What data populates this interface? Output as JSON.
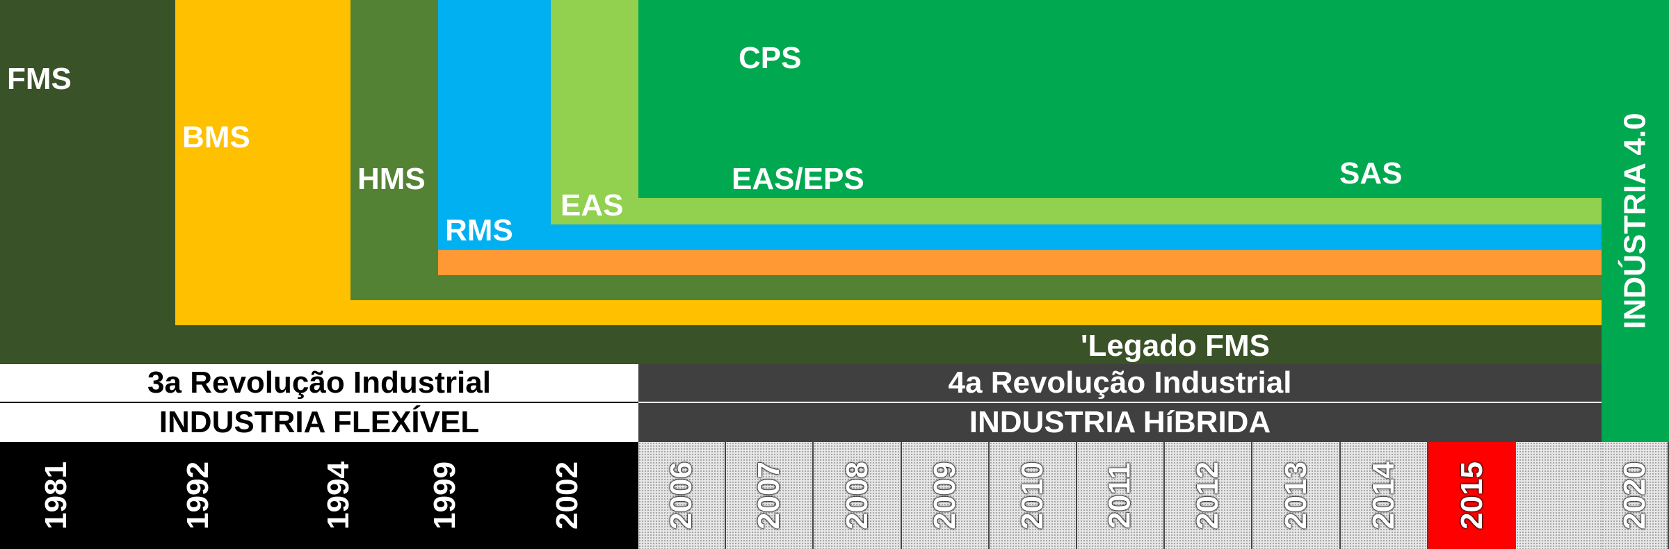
{
  "colors": {
    "fms": "#3a5228",
    "bms": "#ffc000",
    "hms": "#548235",
    "orange_band": "#ff9933",
    "rms": "#00b0f0",
    "eas": "#92d050",
    "cps": "#00a850",
    "industria40": "#00a850",
    "dark_band": "#404040",
    "black": "#000000",
    "highlight_2015": "#ff0000"
  },
  "systems": {
    "fms": "FMS",
    "bms": "BMS",
    "hms": "HMS",
    "rms": "RMS",
    "eas": "EAS",
    "eas_eps": "EAS/EPS",
    "cps": "CPS",
    "sas": "SAS",
    "legacy_fms": "'Legado FMS"
  },
  "industria40": "INDÚSTRIA 4.0",
  "eras": {
    "third_revolution": "3a Revolução Industrial",
    "third_industry": "INDUSTRIA FLEXÍVEL",
    "fourth_revolution": "4a Revolução Industrial",
    "fourth_industry": "INDUSTRIA HíBRIDA"
  },
  "timeline": {
    "early_years": [
      "1981",
      "1992",
      "1994",
      "1999",
      "2002"
    ],
    "mid_years": [
      "2006",
      "2007",
      "2008",
      "2009",
      "2010",
      "2011",
      "2012",
      "2013",
      "2014",
      "2015",
      ""
    ],
    "highlighted_year": "2015",
    "final_year": "2020"
  }
}
